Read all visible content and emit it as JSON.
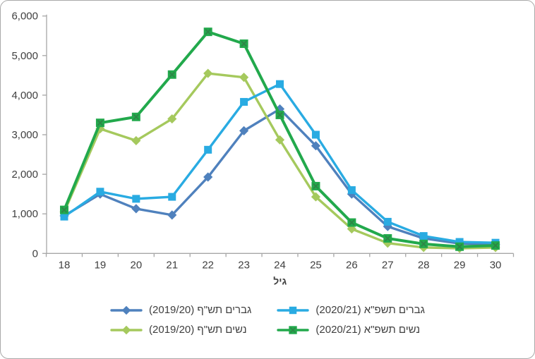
{
  "chart_data": {
    "type": "line",
    "x": [
      18,
      19,
      20,
      21,
      22,
      23,
      24,
      25,
      26,
      27,
      28,
      29,
      30
    ],
    "xlabel": "גיל",
    "ylabel": "",
    "ylim": [
      0,
      6000
    ],
    "ytick_step": 1000,
    "ytick_labels": [
      "0",
      "1,000",
      "2,000",
      "3,000",
      "4,000",
      "5,000",
      "6,000"
    ],
    "grid": false,
    "legend_position": "bottom",
    "axis_color": "#a6a6a6",
    "text_color": "#404040",
    "series": [
      {
        "name": "גברים תשפ\"א (2020/21)",
        "color": "#29abe2",
        "marker": "square",
        "values": [
          930,
          1560,
          1380,
          1430,
          2620,
          3830,
          4280,
          3000,
          1600,
          800,
          440,
          290,
          270
        ]
      },
      {
        "name": "גברים תש\"ף (2019/20)",
        "color": "#4f81bd",
        "marker": "diamond",
        "values": [
          950,
          1500,
          1130,
          970,
          1930,
          3100,
          3650,
          2720,
          1500,
          680,
          380,
          250,
          230
        ]
      },
      {
        "name": "נשים תשפ\"א (2020/21)",
        "color": "#22a94c",
        "marker": "square-x",
        "marker_x_color": "#2e8547",
        "values": [
          1100,
          3300,
          3450,
          4520,
          5600,
          5300,
          3500,
          1700,
          780,
          380,
          240,
          170,
          200
        ]
      },
      {
        "name": "נשים תש\"ף (2019/20)",
        "color": "#a5c95d",
        "marker": "diamond",
        "values": [
          1050,
          3150,
          2850,
          3400,
          4550,
          4450,
          2870,
          1430,
          620,
          260,
          150,
          130,
          150
        ]
      }
    ],
    "draw_order": [
      1,
      3,
      0,
      2
    ]
  }
}
